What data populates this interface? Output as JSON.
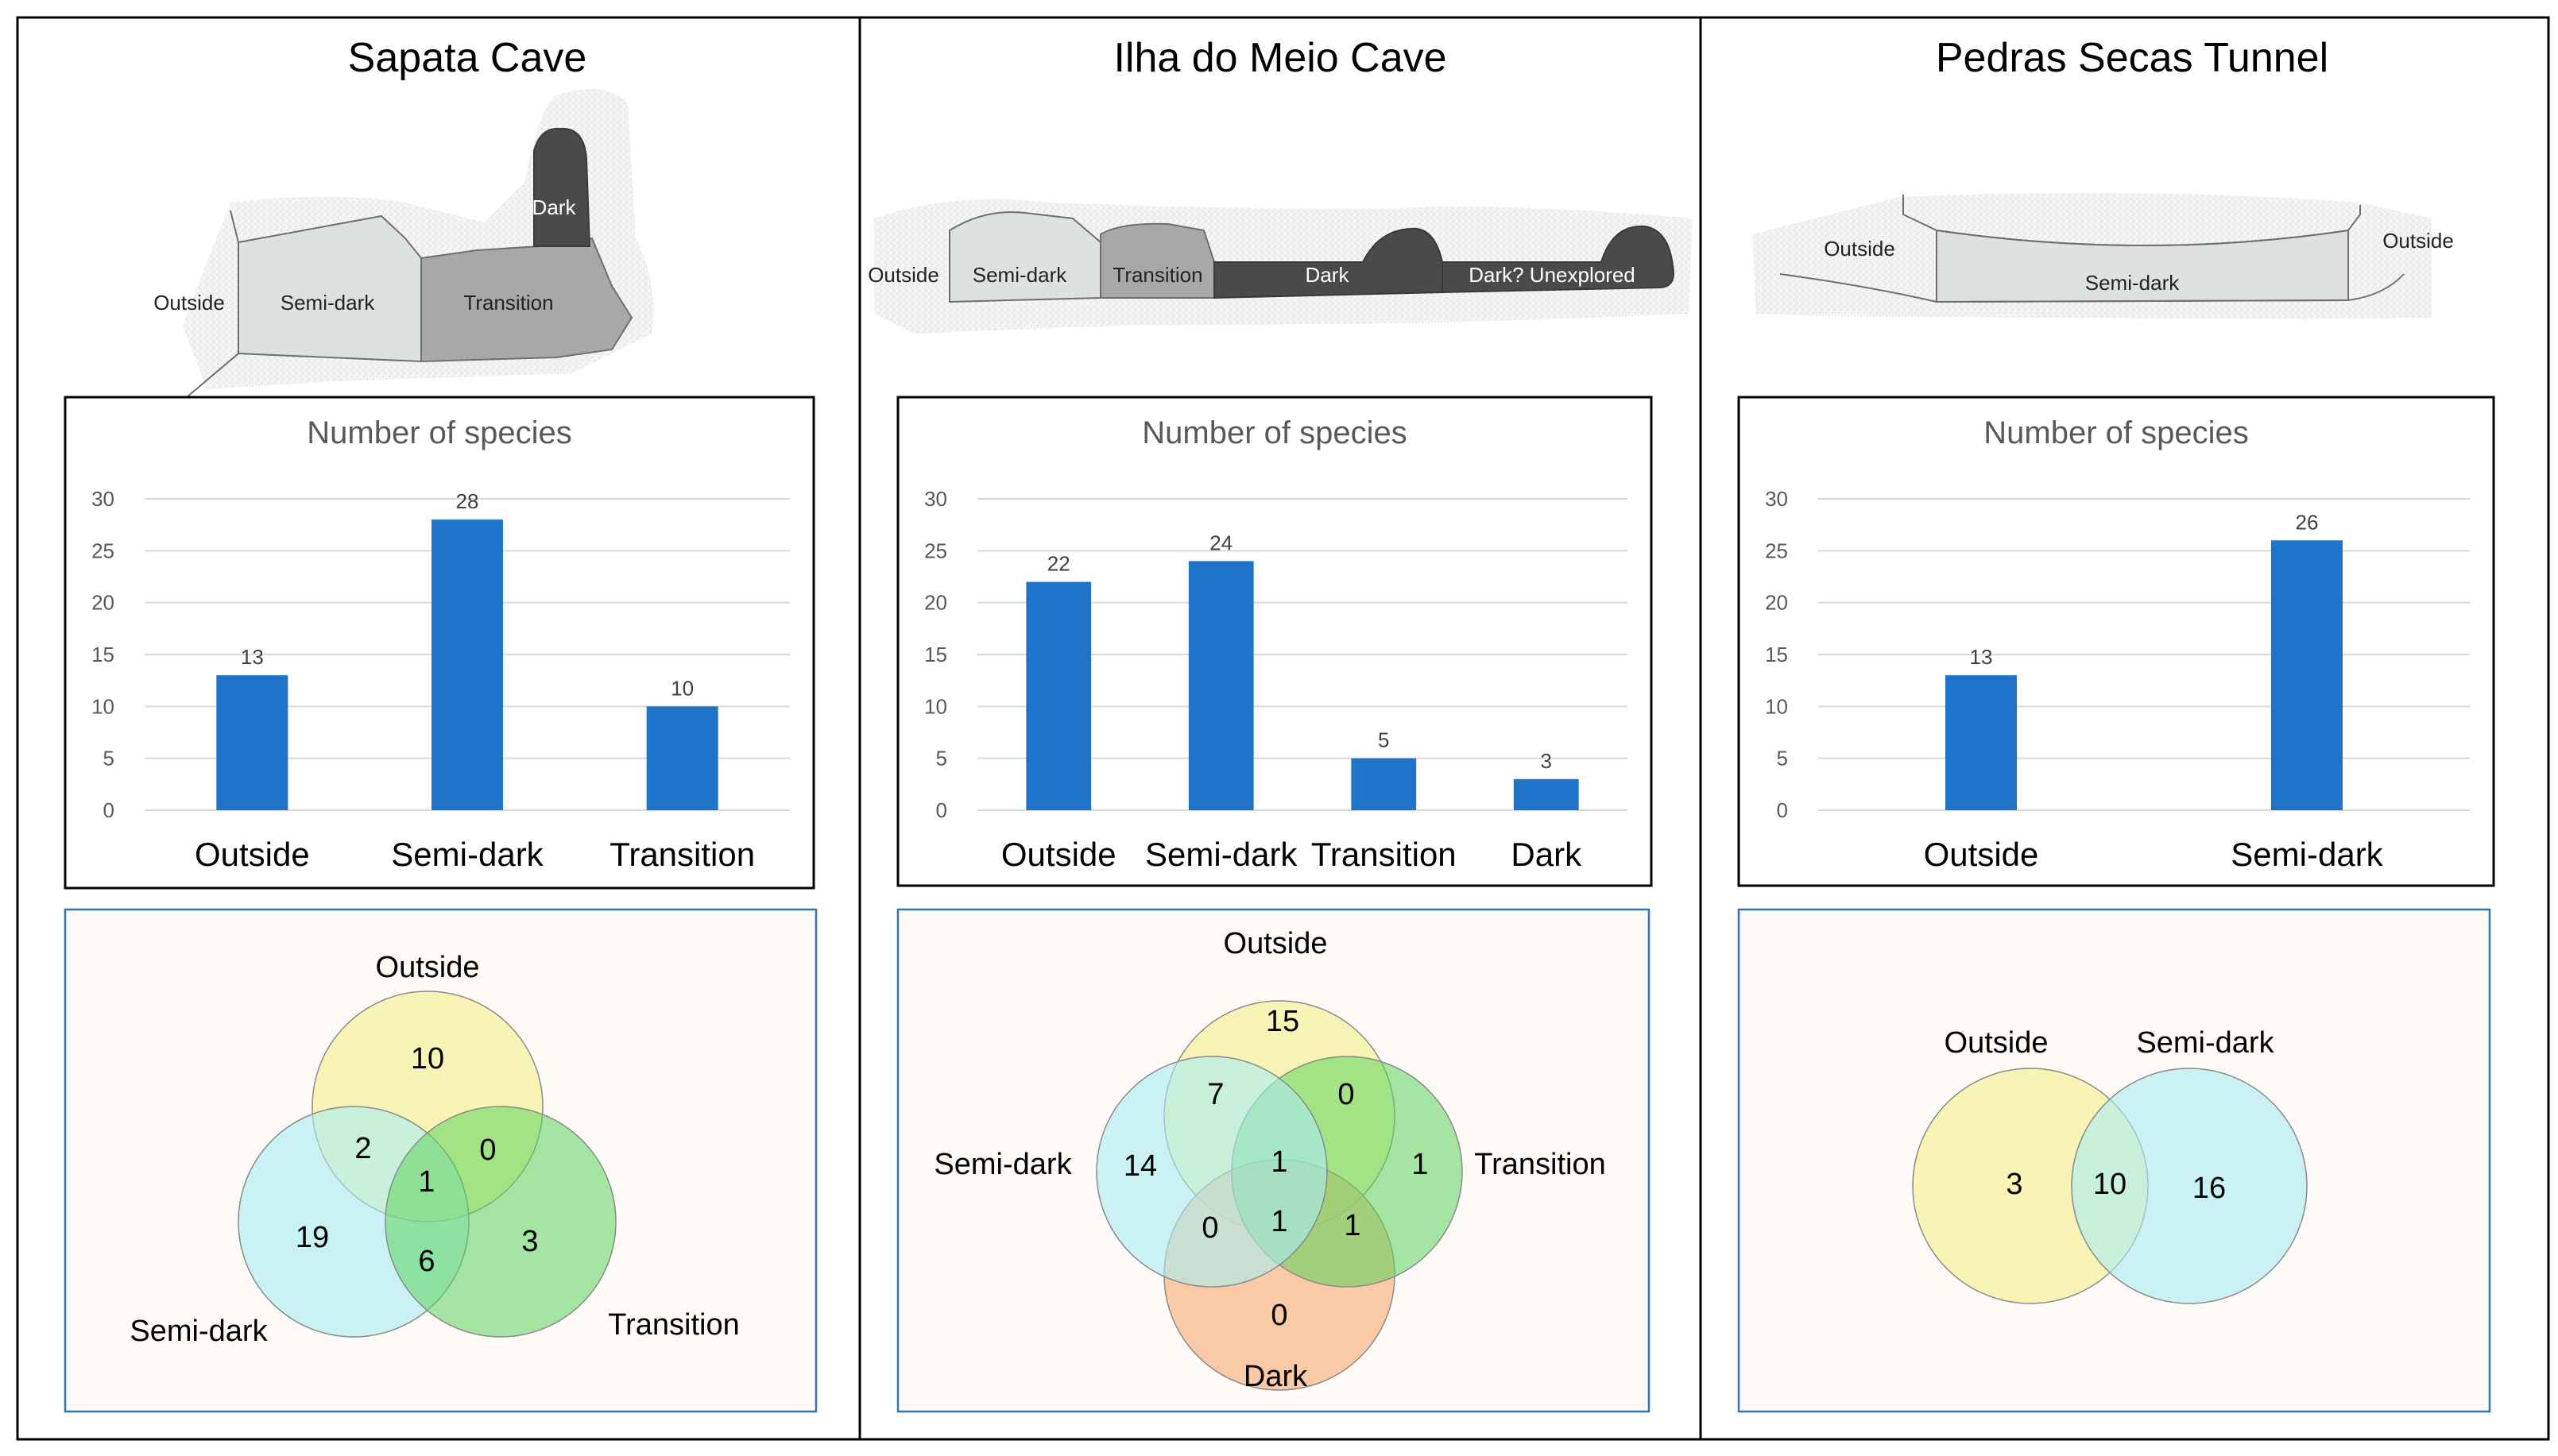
{
  "colors": {
    "bar": "#1f74c9",
    "gridline": "#d9d9d9",
    "frame": "#000000",
    "venn_border": "#2e75b6",
    "venn_bg": "#fdfaf8",
    "cave_outline": "#6f6f6f",
    "zone_semidark": "#dde2e1",
    "zone_transition": "#a8a8a8",
    "zone_dark": "#4a4a4a",
    "circle_yellow": "#f5f1a0",
    "circle_cyan": "#a9ecf1",
    "circle_green": "#5cd45c",
    "circle_orange": "#f7b98a"
  },
  "panels": [
    {
      "title": "Sapata Cave",
      "zones": [
        "Outside",
        "Semi-dark",
        "Transition",
        "Dark"
      ],
      "venn_labels": [
        "Outside",
        "Semi-dark",
        "Transition"
      ],
      "venn_values": [
        "10",
        "2",
        "0",
        "1",
        "19",
        "6",
        "3"
      ]
    },
    {
      "title": "Ilha do Meio Cave",
      "zones": [
        "Outside",
        "Semi-dark",
        "Transition",
        "Dark",
        "Dark? Unexplored"
      ],
      "venn_labels": [
        "Outside",
        "Semi-dark",
        "Transition",
        "Dark"
      ],
      "venn_values": [
        "15",
        "7",
        "0",
        "14",
        "1",
        "1",
        "0",
        "1",
        "1",
        "0"
      ]
    },
    {
      "title": "Pedras Secas Tunnel",
      "zones": [
        "Outside",
        "Semi-dark",
        "Outside"
      ],
      "venn_labels": [
        "Outside",
        "Semi-dark"
      ],
      "venn_values": [
        "3",
        "10",
        "16"
      ]
    }
  ],
  "chart_data": [
    {
      "type": "bar",
      "title": "Number of species",
      "categories": [
        "Outside",
        "Semi-dark",
        "Transition"
      ],
      "values": [
        13,
        28,
        10
      ],
      "data_labels": [
        "13",
        "28",
        "10"
      ],
      "ylim": [
        0,
        30
      ],
      "yticks": [
        "0",
        "5",
        "10",
        "15",
        "20",
        "25",
        "30"
      ],
      "grid": true,
      "xlabel": "",
      "ylabel": ""
    },
    {
      "type": "bar",
      "title": "Number of species",
      "categories": [
        "Outside",
        "Semi-dark",
        "Transition",
        "Dark"
      ],
      "values": [
        22,
        24,
        5,
        3
      ],
      "data_labels": [
        "22",
        "24",
        "5",
        "3"
      ],
      "ylim": [
        0,
        30
      ],
      "yticks": [
        "0",
        "5",
        "10",
        "15",
        "20",
        "25",
        "30"
      ],
      "grid": true,
      "xlabel": "",
      "ylabel": ""
    },
    {
      "type": "bar",
      "title": "Number of species",
      "categories": [
        "Outside",
        "Semi-dark"
      ],
      "values": [
        13,
        26
      ],
      "data_labels": [
        "13",
        "26"
      ],
      "ylim": [
        0,
        30
      ],
      "yticks": [
        "0",
        "5",
        "10",
        "15",
        "20",
        "25",
        "30"
      ],
      "grid": true,
      "xlabel": "",
      "ylabel": ""
    }
  ]
}
